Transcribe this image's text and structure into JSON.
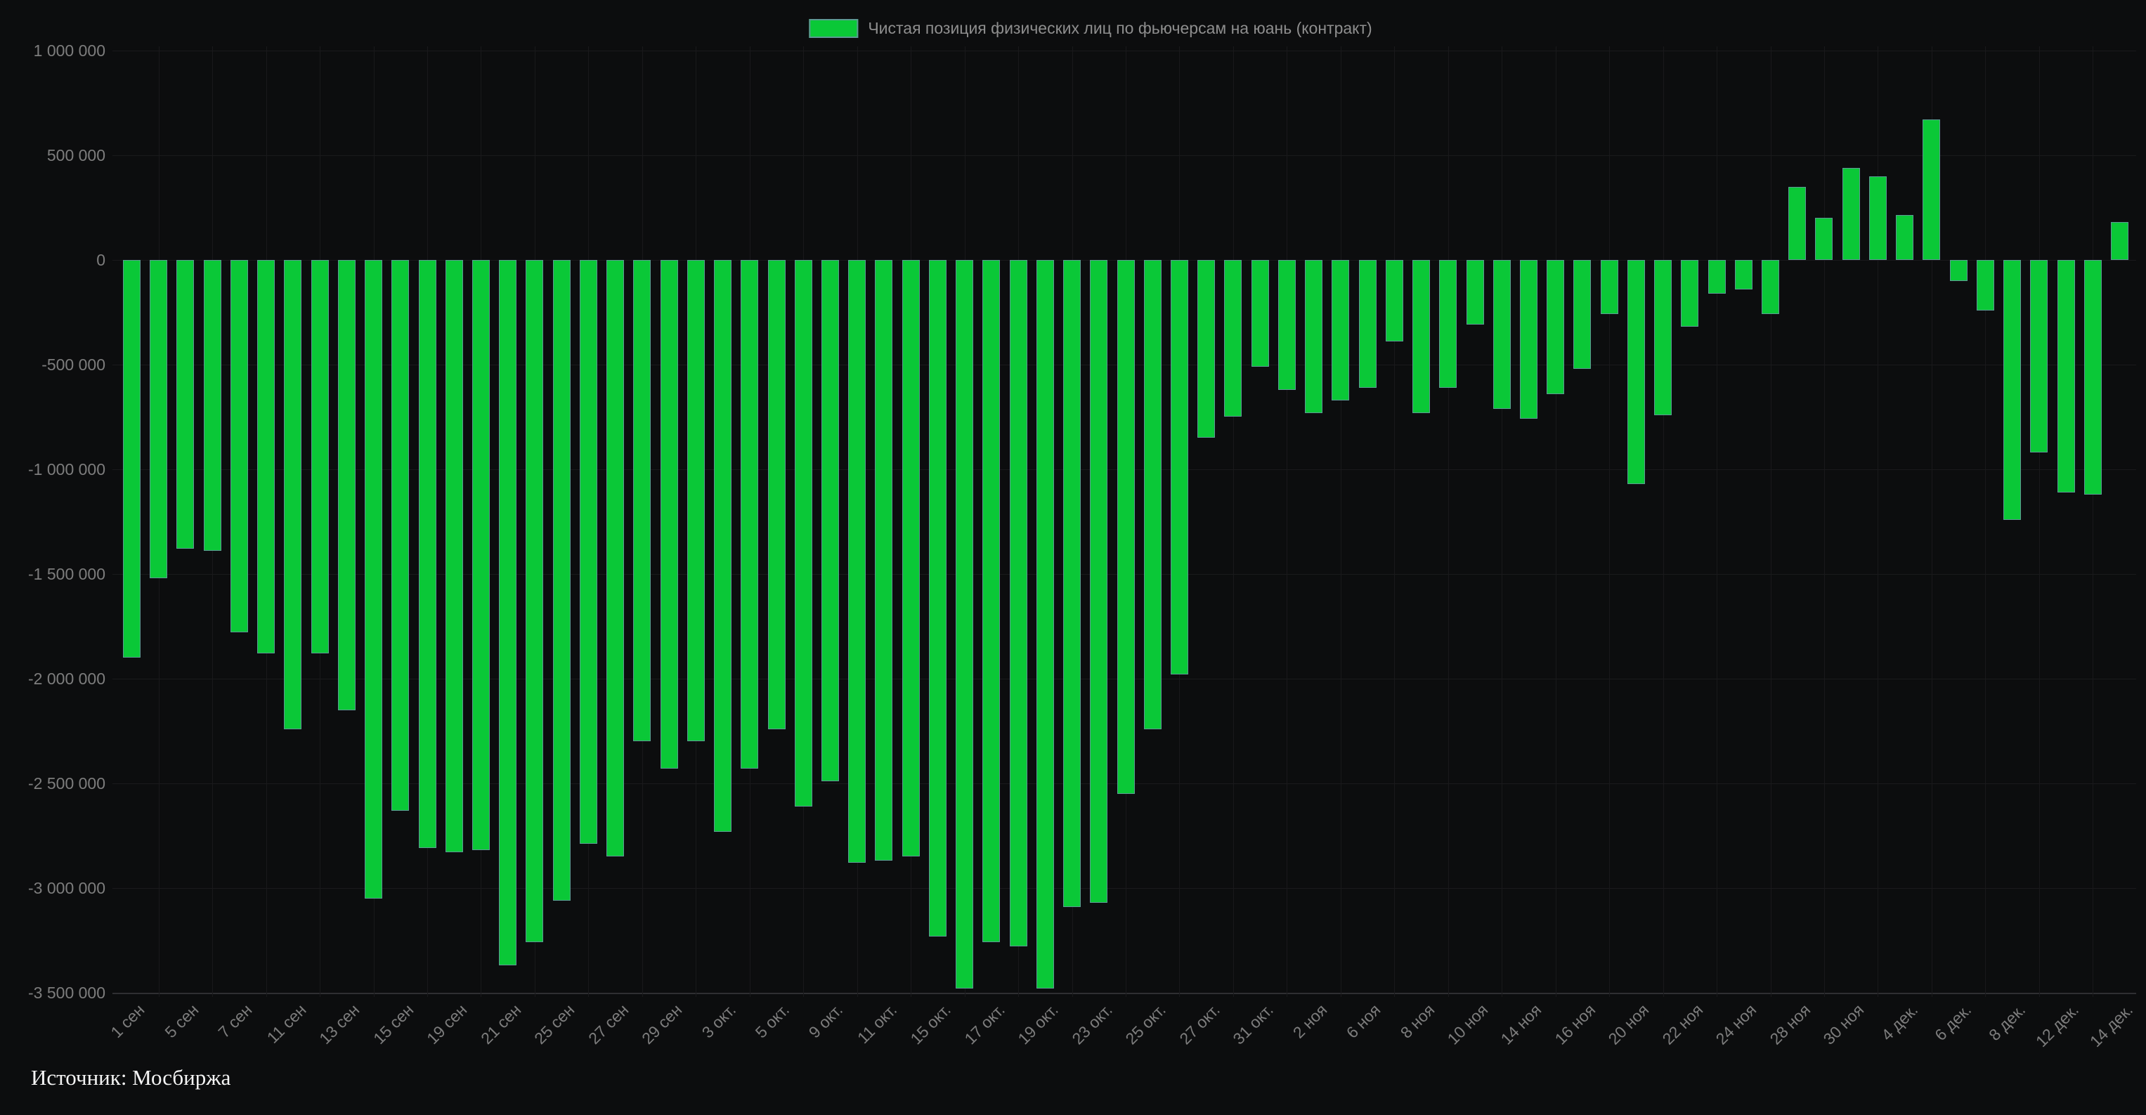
{
  "page": {
    "background": "#0c0d0e"
  },
  "legend": {
    "label": "Чистая позиция физических лиц по фьючерсам на юань (контракт)",
    "swatch_fill": "#0ac837",
    "swatch_border": "#5d9a94"
  },
  "source_note": "Источник: Мосбиржа",
  "chart_data": {
    "type": "bar",
    "title": "",
    "xlabel": "",
    "ylabel": "",
    "legend_position": "top",
    "grid": true,
    "ylim": [
      -3500000,
      1000000
    ],
    "y_tick_step": 500000,
    "y_tick_labels": [
      "1 000 000",
      "500 000",
      "0",
      "-500 000",
      "-1 000 000",
      "-1 500 000",
      "-2 000 000",
      "-2 500 000",
      "-3 000 000",
      "-3 500 000"
    ],
    "label_every": 2,
    "tick_labels": [
      "1 сен",
      "5 сен",
      "7 сен",
      "11 сен",
      "13 сен",
      "15 сен",
      "19 сен",
      "21 сен",
      "25 сен",
      "27 сен",
      "29 сен",
      "3 окт.",
      "5 окт.",
      "9 окт.",
      "11 окт.",
      "15 окт.",
      "17 окт.",
      "19 окт.",
      "23 окт.",
      "25 окт.",
      "27 окт.",
      "31 окт.",
      "2 ноя",
      "6 ноя",
      "8 ноя",
      "10 ноя",
      "14 ноя",
      "16 ноя",
      "20 ноя",
      "22 ноя",
      "24 ноя",
      "28 ноя",
      "30 ноя",
      "4 дек.",
      "6 дек.",
      "8 дек.",
      "12 дек.",
      "14 дек."
    ],
    "series": [
      {
        "name": "Чистая позиция физических лиц по фьючерсам на юань (контракт)",
        "color": "#0ac837",
        "border_color": "#5d9a94",
        "values": [
          -1900000,
          -1520000,
          -1380000,
          -1390000,
          -1780000,
          -1880000,
          -2240000,
          -1880000,
          -2150000,
          -3050000,
          -2630000,
          -2810000,
          -2830000,
          -2820000,
          -3370000,
          -3260000,
          -3060000,
          -2790000,
          -2850000,
          -2300000,
          -2430000,
          -2300000,
          -2730000,
          -2430000,
          -2240000,
          -2610000,
          -2490000,
          -2880000,
          -2870000,
          -2850000,
          -3230000,
          -3480000,
          -3260000,
          -3280000,
          -3480000,
          -3090000,
          -3070000,
          -2550000,
          -2240000,
          -1980000,
          -850000,
          -750000,
          -510000,
          -620000,
          -730000,
          -670000,
          -610000,
          -390000,
          -730000,
          -610000,
          -310000,
          -710000,
          -760000,
          -640000,
          -520000,
          -260000,
          -1070000,
          -740000,
          -320000,
          -160000,
          -140000,
          -260000,
          350000,
          200000,
          440000,
          400000,
          215000,
          670000,
          -100000,
          -240000,
          -1240000,
          -920000,
          -1110000,
          -1120000,
          180000
        ]
      }
    ]
  }
}
